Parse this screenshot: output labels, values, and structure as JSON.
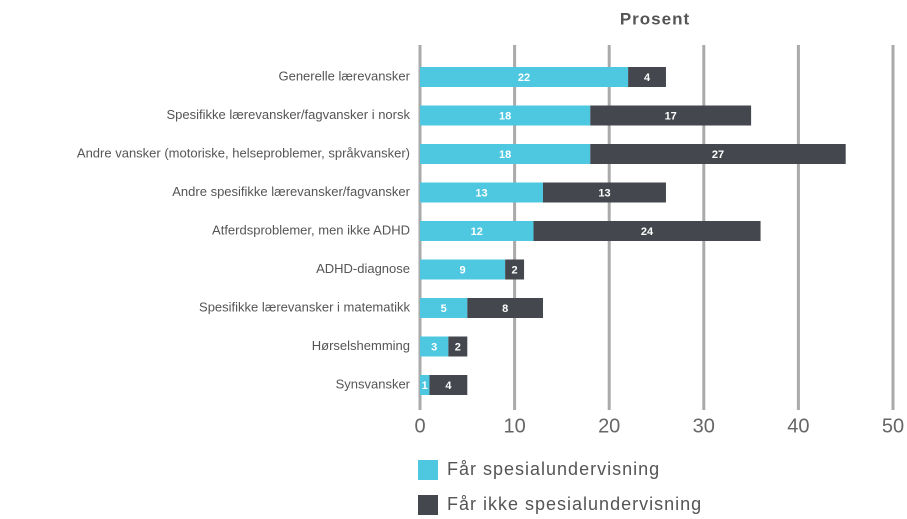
{
  "chart_data": {
    "type": "stacked_barh",
    "xlabel": "Prosent",
    "categories": [
      "Generelle lærevansker",
      "Spesifikke lærevansker/fagvansker i norsk",
      "Andre vansker (motoriske, helseproblemer, språkvansker)",
      "Andre spesifikke lærevansker/fagvansker",
      "Atferdsproblemer, men ikke ADHD",
      "ADHD-diagnose",
      "Spesifikke lærevansker i matematikk",
      "Hørselshemming",
      "Synsvansker"
    ],
    "series": [
      {
        "name": "Får spesialundervisning",
        "color": "#4ec8e0",
        "values": [
          22,
          18,
          18,
          13,
          12,
          9,
          5,
          3,
          1
        ]
      },
      {
        "name": "Får ikke spesialundervisning",
        "color": "#45474f",
        "values": [
          4,
          17,
          27,
          13,
          24,
          2,
          8,
          2,
          4
        ]
      }
    ],
    "xlim": [
      0,
      50
    ],
    "xticks": [
      0,
      10,
      20,
      30,
      40,
      50
    ],
    "grid": true
  }
}
